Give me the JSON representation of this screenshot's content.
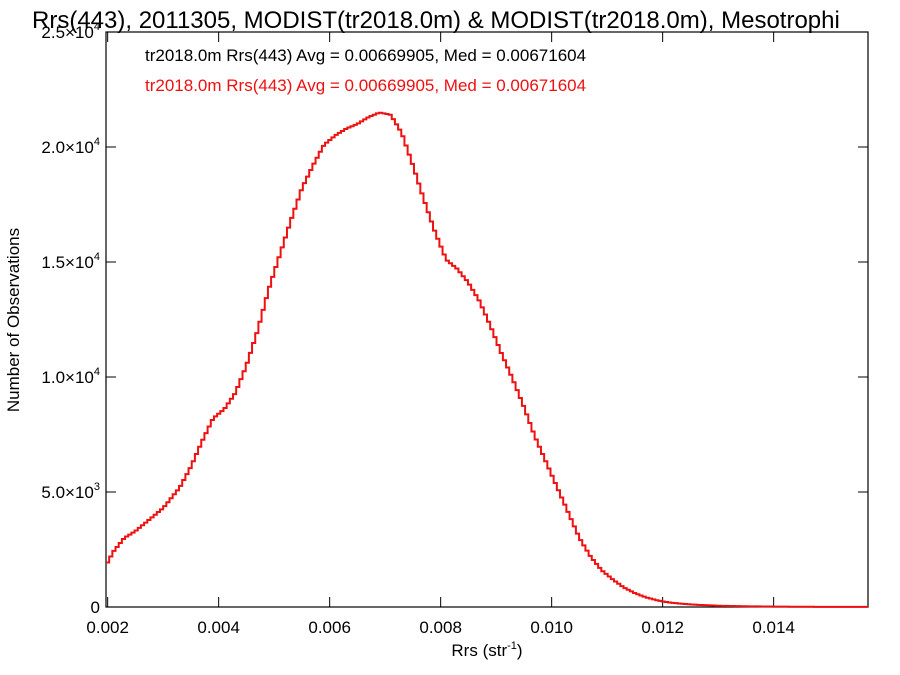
{
  "chart_data": {
    "type": "line",
    "title": "Rrs(443), 2011305, MODIST(tr2018.0m) & MODIST(tr2018.0m), Mesotrophi",
    "xlabel": "Rrs (str",
    "xlabel_sup": "-1",
    "xlabel_end": ")",
    "ylabel": "Number of Observations",
    "xlim": [
      0.00197,
      0.0157
    ],
    "ylim": [
      0,
      25000
    ],
    "x_ticks": [
      {
        "value": 0.002,
        "label": "0.002"
      },
      {
        "value": 0.004,
        "label": "0.004"
      },
      {
        "value": 0.006,
        "label": "0.006"
      },
      {
        "value": 0.008,
        "label": "0.008"
      },
      {
        "value": 0.01,
        "label": "0.010"
      },
      {
        "value": 0.012,
        "label": "0.012"
      },
      {
        "value": 0.014,
        "label": "0.014"
      }
    ],
    "y_ticks": [
      {
        "value": 0,
        "mant": "0",
        "exp": ""
      },
      {
        "value": 5000,
        "mant": "5.0×10",
        "exp": "3"
      },
      {
        "value": 10000,
        "mant": "1.0×10",
        "exp": "4"
      },
      {
        "value": 15000,
        "mant": "1.5×10",
        "exp": "4"
      },
      {
        "value": 20000,
        "mant": "2.0×10",
        "exp": "4"
      },
      {
        "value": 25000,
        "mant": "2.5×10",
        "exp": "4"
      }
    ],
    "annotations": [
      {
        "text": "tr2018.0m Rrs(443) Avg = 0.00669905, Med = 0.00671604",
        "color": "#000000"
      },
      {
        "text": "tr2018.0m Rrs(443) Avg = 0.00669905, Med = 0.00671604",
        "color": "#ee1111"
      }
    ],
    "series": [
      {
        "color": "#ee1111",
        "points": [
          [
            0.00197,
            1800
          ],
          [
            0.0021,
            2400
          ],
          [
            0.0023,
            3000
          ],
          [
            0.0025,
            3300
          ],
          [
            0.0027,
            3700
          ],
          [
            0.003,
            4300
          ],
          [
            0.0033,
            5200
          ],
          [
            0.0035,
            6100
          ],
          [
            0.0037,
            7200
          ],
          [
            0.0039,
            8200
          ],
          [
            0.0041,
            8600
          ],
          [
            0.0043,
            9300
          ],
          [
            0.0045,
            10500
          ],
          [
            0.0047,
            12000
          ],
          [
            0.0049,
            13800
          ],
          [
            0.0051,
            15300
          ],
          [
            0.0053,
            16800
          ],
          [
            0.0055,
            18200
          ],
          [
            0.0057,
            19200
          ],
          [
            0.0059,
            20100
          ],
          [
            0.0061,
            20500
          ],
          [
            0.0063,
            20800
          ],
          [
            0.0065,
            21000
          ],
          [
            0.0067,
            21300
          ],
          [
            0.0069,
            21500
          ],
          [
            0.0071,
            21400
          ],
          [
            0.0073,
            20600
          ],
          [
            0.0075,
            19200
          ],
          [
            0.0077,
            17700
          ],
          [
            0.0079,
            16300
          ],
          [
            0.0081,
            15100
          ],
          [
            0.0083,
            14700
          ],
          [
            0.0085,
            14100
          ],
          [
            0.0087,
            13300
          ],
          [
            0.0089,
            12200
          ],
          [
            0.0091,
            11000
          ],
          [
            0.0093,
            9900
          ],
          [
            0.0095,
            8700
          ],
          [
            0.0097,
            7400
          ],
          [
            0.0099,
            6300
          ],
          [
            0.0101,
            5200
          ],
          [
            0.0103,
            4100
          ],
          [
            0.0105,
            3000
          ],
          [
            0.0107,
            2200
          ],
          [
            0.0109,
            1600
          ],
          [
            0.0111,
            1200
          ],
          [
            0.0113,
            850
          ],
          [
            0.0115,
            600
          ],
          [
            0.0117,
            420
          ],
          [
            0.0119,
            290
          ],
          [
            0.0121,
            200
          ],
          [
            0.0124,
            130
          ],
          [
            0.0127,
            85
          ],
          [
            0.013,
            55
          ],
          [
            0.0135,
            30
          ],
          [
            0.014,
            18
          ],
          [
            0.0145,
            10
          ],
          [
            0.015,
            6
          ],
          [
            0.0157,
            3
          ]
        ]
      }
    ]
  }
}
